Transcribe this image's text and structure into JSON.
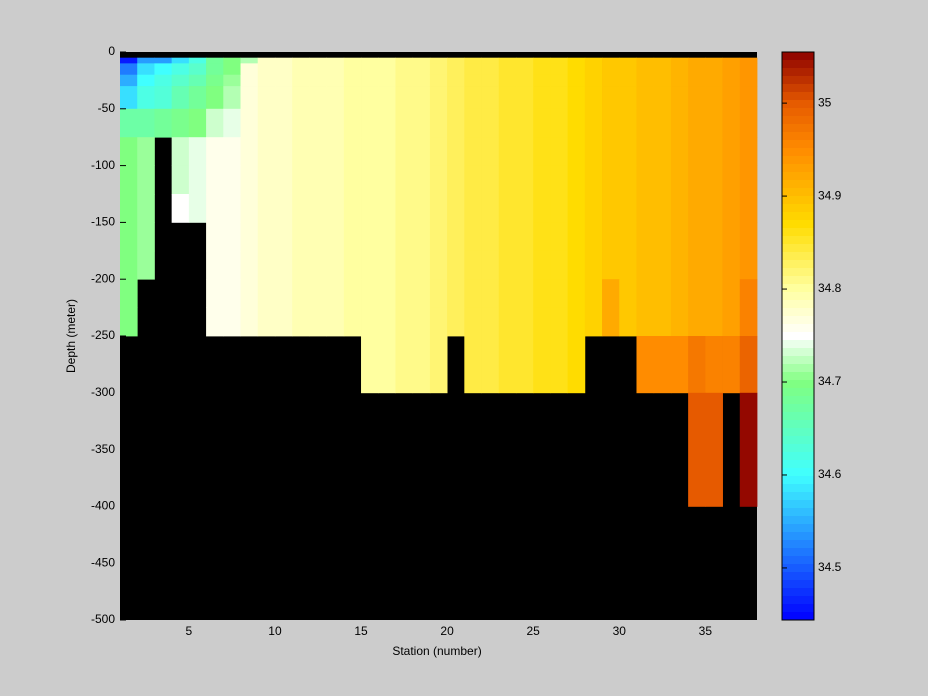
{
  "chart_data": {
    "type": "heatmap",
    "xlabel": "Station (number)",
    "ylabel": "Depth (meter)",
    "x": [
      1,
      2,
      3,
      4,
      5,
      6,
      7,
      8,
      9,
      10,
      11,
      12,
      13,
      14,
      15,
      16,
      17,
      18,
      19,
      20,
      21,
      22,
      23,
      24,
      25,
      26,
      27,
      28,
      29,
      30,
      31,
      32,
      33,
      34,
      35,
      36,
      37,
      38
    ],
    "y": [
      0,
      -5,
      -10,
      -20,
      -30,
      -50,
      -75,
      -100,
      -125,
      -150,
      -175,
      -200,
      -225,
      -250,
      -300,
      -400,
      -500
    ],
    "xlim": [
      1,
      38
    ],
    "ylim": [
      -500,
      0
    ],
    "xticks": [
      5,
      10,
      15,
      20,
      25,
      30,
      35
    ],
    "yticks": [
      0,
      -50,
      -100,
      -150,
      -200,
      -250,
      -300,
      -350,
      -400,
      -450,
      -500
    ],
    "clim": [
      34.444,
      35.055
    ],
    "cticks": [
      34.5,
      34.6,
      34.7,
      34.8,
      34.9,
      35
    ],
    "background": "#000000",
    "colormap": [
      {
        "at": 0,
        "color": "#0000ff"
      },
      {
        "at": 0.255,
        "color": "#40ffff"
      },
      {
        "at": 0.419,
        "color": "#80ff80"
      },
      {
        "at": 0.5,
        "color": "#ffffff"
      },
      {
        "at": 0.583,
        "color": "#ffffa0"
      },
      {
        "at": 0.697,
        "color": "#ffdc00"
      },
      {
        "at": 0.828,
        "color": "#ff8c00"
      },
      {
        "at": 0.91,
        "color": "#e65a00"
      },
      {
        "at": 1,
        "color": "#8c0000"
      }
    ],
    "values": [
      [
        null,
        null,
        null,
        null,
        null,
        null,
        null,
        null,
        null,
        null,
        null,
        null,
        null,
        null,
        null,
        null,
        null,
        null,
        null,
        null,
        null,
        null,
        null,
        null,
        null,
        null,
        null,
        null,
        null,
        null,
        null,
        null,
        null,
        null,
        null,
        null,
        null
      ],
      [
        34.46,
        34.54,
        34.54,
        34.58,
        34.62,
        34.68,
        34.7,
        34.72,
        34.78,
        34.78,
        34.79,
        34.79,
        34.79,
        34.8,
        34.8,
        34.8,
        34.81,
        34.81,
        34.82,
        34.83,
        34.84,
        34.84,
        34.85,
        34.85,
        34.86,
        34.86,
        34.87,
        34.88,
        34.89,
        34.89,
        34.9,
        34.9,
        34.91,
        34.92,
        34.92,
        34.93,
        34.94
      ],
      [
        34.52,
        34.58,
        34.6,
        34.62,
        34.64,
        34.68,
        34.7,
        34.77,
        34.78,
        34.78,
        34.79,
        34.79,
        34.79,
        34.8,
        34.8,
        34.8,
        34.81,
        34.81,
        34.82,
        34.83,
        34.84,
        34.84,
        34.85,
        34.85,
        34.86,
        34.86,
        34.87,
        34.88,
        34.89,
        34.89,
        34.9,
        34.9,
        34.91,
        34.92,
        34.92,
        34.93,
        34.94
      ],
      [
        34.55,
        34.6,
        34.62,
        34.64,
        34.66,
        34.69,
        34.71,
        34.77,
        34.78,
        34.78,
        34.79,
        34.79,
        34.79,
        34.8,
        34.8,
        34.8,
        34.81,
        34.81,
        34.82,
        34.83,
        34.84,
        34.84,
        34.85,
        34.85,
        34.86,
        34.86,
        34.87,
        34.88,
        34.89,
        34.89,
        34.9,
        34.9,
        34.91,
        34.92,
        34.92,
        34.93,
        34.94
      ],
      [
        34.58,
        34.62,
        34.63,
        34.66,
        34.68,
        34.7,
        34.72,
        34.77,
        34.78,
        34.78,
        34.79,
        34.79,
        34.79,
        34.8,
        34.8,
        34.8,
        34.81,
        34.81,
        34.82,
        34.83,
        34.84,
        34.84,
        34.85,
        34.85,
        34.86,
        34.86,
        34.87,
        34.88,
        34.89,
        34.89,
        34.9,
        34.9,
        34.91,
        34.92,
        34.92,
        34.93,
        34.94
      ],
      [
        34.67,
        34.67,
        34.68,
        34.69,
        34.7,
        34.73,
        34.74,
        34.77,
        34.78,
        34.78,
        34.79,
        34.79,
        34.79,
        34.8,
        34.8,
        34.8,
        34.81,
        34.81,
        34.82,
        34.83,
        34.84,
        34.84,
        34.85,
        34.85,
        34.86,
        34.86,
        34.87,
        34.88,
        34.89,
        34.89,
        34.9,
        34.9,
        34.91,
        34.92,
        34.92,
        34.93,
        34.94
      ],
      [
        34.7,
        34.71,
        null,
        34.73,
        34.74,
        34.76,
        34.76,
        34.77,
        34.78,
        34.78,
        34.79,
        34.79,
        34.79,
        34.8,
        34.8,
        34.8,
        34.81,
        34.81,
        34.82,
        34.83,
        34.84,
        34.84,
        34.85,
        34.85,
        34.86,
        34.86,
        34.87,
        34.88,
        34.89,
        34.89,
        34.9,
        34.9,
        34.91,
        34.92,
        34.92,
        34.93,
        34.94
      ],
      [
        34.7,
        34.71,
        null,
        34.73,
        34.74,
        34.76,
        34.76,
        34.77,
        34.78,
        34.78,
        34.79,
        34.79,
        34.79,
        34.8,
        34.8,
        34.8,
        34.81,
        34.81,
        34.82,
        34.83,
        34.84,
        34.84,
        34.85,
        34.85,
        34.86,
        34.86,
        34.87,
        34.88,
        34.89,
        34.89,
        34.9,
        34.9,
        34.91,
        34.92,
        34.92,
        34.93,
        34.94
      ],
      [
        34.7,
        34.71,
        null,
        34.75,
        34.74,
        34.76,
        34.76,
        34.77,
        34.78,
        34.78,
        34.79,
        34.79,
        34.79,
        34.8,
        34.8,
        34.8,
        34.81,
        34.81,
        34.82,
        34.83,
        34.84,
        34.84,
        34.85,
        34.85,
        34.86,
        34.86,
        34.87,
        34.88,
        34.89,
        34.89,
        34.9,
        34.9,
        34.91,
        34.92,
        34.92,
        34.93,
        34.94
      ],
      [
        34.7,
        34.71,
        null,
        null,
        null,
        34.76,
        34.76,
        34.77,
        34.78,
        34.78,
        34.79,
        34.79,
        34.79,
        34.8,
        34.8,
        34.8,
        34.81,
        34.81,
        34.82,
        34.83,
        34.84,
        34.84,
        34.85,
        34.85,
        34.86,
        34.86,
        34.87,
        34.88,
        34.89,
        34.89,
        34.9,
        34.9,
        34.91,
        34.92,
        34.92,
        34.93,
        34.94
      ],
      [
        34.7,
        34.71,
        null,
        null,
        null,
        34.76,
        34.76,
        34.77,
        34.78,
        34.78,
        34.79,
        34.79,
        34.79,
        34.8,
        34.8,
        34.8,
        34.81,
        34.81,
        34.82,
        34.83,
        34.84,
        34.84,
        34.85,
        34.85,
        34.86,
        34.86,
        34.87,
        34.88,
        34.89,
        34.89,
        34.9,
        34.9,
        34.91,
        34.92,
        34.92,
        34.93,
        34.94
      ],
      [
        34.7,
        null,
        null,
        null,
        null,
        34.76,
        34.76,
        34.77,
        34.78,
        34.78,
        34.79,
        34.79,
        34.79,
        34.8,
        34.8,
        34.8,
        34.81,
        34.81,
        34.82,
        34.83,
        34.84,
        34.84,
        34.85,
        34.85,
        34.86,
        34.86,
        34.87,
        34.88,
        34.92,
        34.89,
        34.9,
        34.9,
        34.91,
        34.92,
        34.92,
        34.93,
        34.96
      ],
      [
        34.7,
        null,
        null,
        null,
        null,
        34.76,
        34.76,
        34.77,
        34.78,
        34.78,
        34.79,
        34.79,
        34.79,
        34.8,
        34.8,
        34.8,
        34.81,
        34.81,
        34.82,
        34.83,
        34.84,
        34.84,
        34.85,
        34.85,
        34.86,
        34.86,
        34.87,
        34.88,
        34.92,
        34.89,
        34.9,
        34.9,
        34.91,
        34.92,
        34.92,
        34.93,
        34.96
      ],
      [
        null,
        null,
        null,
        null,
        null,
        null,
        null,
        null,
        null,
        null,
        null,
        null,
        null,
        null,
        34.8,
        34.8,
        34.81,
        34.81,
        34.82,
        null,
        34.84,
        34.84,
        34.85,
        34.85,
        34.86,
        34.86,
        34.87,
        null,
        null,
        null,
        34.95,
        34.95,
        34.95,
        34.97,
        34.96,
        34.96,
        34.99
      ],
      [
        null,
        null,
        null,
        null,
        null,
        null,
        null,
        null,
        null,
        null,
        null,
        null,
        null,
        null,
        null,
        null,
        null,
        null,
        null,
        null,
        null,
        null,
        null,
        null,
        null,
        null,
        null,
        null,
        null,
        null,
        null,
        null,
        null,
        35.0,
        35.0,
        null,
        35.05
      ],
      [
        null,
        null,
        null,
        null,
        null,
        null,
        null,
        null,
        null,
        null,
        null,
        null,
        null,
        null,
        null,
        null,
        null,
        null,
        null,
        null,
        null,
        null,
        null,
        null,
        null,
        null,
        null,
        null,
        null,
        null,
        null,
        null,
        null,
        null,
        null,
        null,
        null
      ]
    ]
  }
}
